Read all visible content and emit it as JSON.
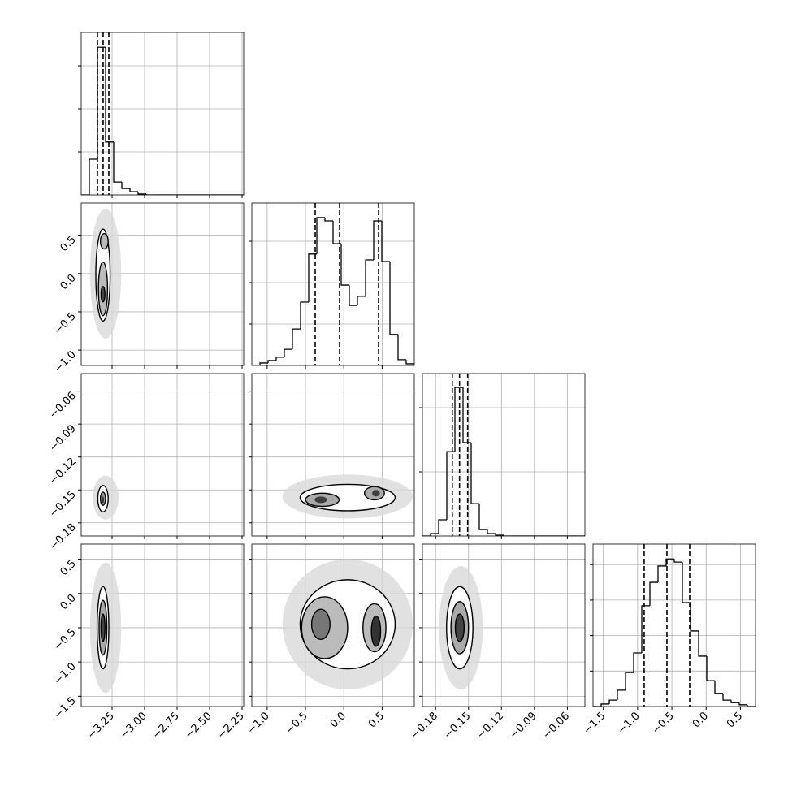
{
  "chart_data": {
    "type": "corner",
    "grid": true,
    "color": "#000000",
    "params": [
      {
        "lim": [
          -3.4875,
          -2.2375
        ],
        "ticks": [
          {
            "value": -3.25,
            "label": "−3.25"
          },
          {
            "value": -3,
            "label": "−3.00"
          },
          {
            "value": -2.75,
            "label": "−2.75"
          },
          {
            "value": -2.5,
            "label": "−2.50"
          },
          {
            "value": -2.25,
            "label": "−2.25"
          }
        ]
      },
      {
        "lim": [
          -1.2,
          0.92
        ],
        "ticks": [
          {
            "value": -1,
            "label": "−1.0"
          },
          {
            "value": -0.5,
            "label": "−0.5"
          },
          {
            "value": 0,
            "label": "0.0"
          },
          {
            "value": 0.5,
            "label": "0.5"
          }
        ]
      },
      {
        "lim": [
          -0.192,
          -0.044
        ],
        "ticks": [
          {
            "value": -0.18,
            "label": "−0.18"
          },
          {
            "value": -0.15,
            "label": "−0.15"
          },
          {
            "value": -0.12,
            "label": "−0.12"
          },
          {
            "value": -0.09,
            "label": "−0.09"
          },
          {
            "value": -0.06,
            "label": "−0.06"
          }
        ]
      },
      {
        "lim": [
          -1.65,
          0.72
        ],
        "ticks": [
          {
            "value": -1.5,
            "label": "−1.5"
          },
          {
            "value": -1,
            "label": "−1.0"
          },
          {
            "value": -0.5,
            "label": "−0.5"
          },
          {
            "value": 0,
            "label": "0.0"
          },
          {
            "value": 0.5,
            "label": "0.5"
          }
        ]
      }
    ],
    "histograms": [
      {
        "bins": [
          -3.4875,
          -3.425,
          -3.3625,
          -3.3,
          -3.2375,
          -3.175,
          -3.1125,
          -3.05,
          -2.9875,
          -2.925,
          -2.8625,
          -2.8,
          -2.7375,
          -2.675,
          -2.6125,
          -2.55,
          -2.4875,
          -2.425,
          -2.3625,
          -2.3,
          -2.2375
        ],
        "counts": [
          0,
          830,
          3430,
          1230,
          300,
          150,
          75,
          20,
          0,
          0,
          0,
          0,
          0,
          0,
          0,
          0,
          0,
          0,
          0,
          0
        ],
        "ylim": [
          0,
          3774
        ],
        "yticks": [
          1000,
          2000,
          3000
        ],
        "quantiles": [
          -3.3625,
          -3.319,
          -3.275
        ]
      },
      {
        "bins": [
          -1.2,
          -1.094,
          -0.988,
          -0.882,
          -0.776,
          -0.67,
          -0.564,
          -0.458,
          -0.352,
          -0.246,
          -0.14,
          -0.034,
          0.072,
          0.178,
          0.284,
          0.39,
          0.496,
          0.602,
          0.708,
          0.814,
          0.92
        ],
        "counts": [
          0,
          60,
          120,
          200,
          390,
          880,
          1530,
          2690,
          3570,
          3490,
          2940,
          1940,
          1450,
          1670,
          2550,
          3490,
          2510,
          750,
          140,
          40
        ],
        "ylim": [
          0,
          3922
        ],
        "yticks": [
          1000,
          2000,
          3000
        ],
        "quantiles": [
          -0.373,
          -0.055,
          0.454
        ]
      },
      {
        "bins": [
          -0.192,
          -0.1846,
          -0.1772,
          -0.1698,
          -0.1624,
          -0.155,
          -0.1476,
          -0.1402,
          -0.1328,
          -0.1254,
          -0.118,
          -0.1106,
          -0.1032,
          -0.0958,
          -0.0884,
          -0.081,
          -0.0736,
          -0.0662,
          -0.0588,
          -0.0514,
          -0.044
        ],
        "counts": [
          0,
          76,
          506,
          2630,
          4630,
          2910,
          1010,
          200,
          76,
          25,
          0,
          0,
          0,
          0,
          0,
          0,
          0,
          0,
          0,
          0
        ],
        "ylim": [
          0,
          5063
        ],
        "yticks": [
          2000,
          4000
        ],
        "quantiles": [
          -0.1648,
          -0.1582,
          -0.1508
        ]
      },
      {
        "bins": [
          -1.65,
          -1.5315,
          -1.413,
          -1.2945,
          -1.176,
          -1.0575,
          -0.939,
          -0.8205,
          -0.702,
          -0.5835,
          -0.465,
          -0.3465,
          -0.228,
          -0.1095,
          0.009,
          0.1275,
          0.246,
          0.3645,
          0.483,
          0.6015,
          0.72
        ],
        "counts": [
          0,
          70,
          180,
          460,
          960,
          1510,
          2840,
          3500,
          3960,
          4160,
          4070,
          2930,
          2130,
          1420,
          730,
          370,
          180,
          110,
          50,
          0
        ],
        "ylim": [
          0,
          4577
        ],
        "yticks": [
          1000,
          2000,
          3000,
          4000
        ],
        "quantiles": [
          -0.904,
          -0.572,
          -0.24
        ]
      }
    ],
    "panels": [
      {
        "contours": [
          {
            "cx": -3.3,
            "cy": 0,
            "rx": 0.12,
            "ry": 0.85,
            "fill": "#d9d9d9",
            "outline": false
          },
          {
            "cx": -3.32,
            "cy": -0.02,
            "rx": 0.055,
            "ry": 0.6,
            "fill": "#ffffff",
            "outline": true
          },
          {
            "cx": -3.32,
            "cy": -0.2,
            "rx": 0.035,
            "ry": 0.35,
            "fill": "#bbbbbb",
            "outline": true
          },
          {
            "cx": -3.31,
            "cy": 0.42,
            "rx": 0.03,
            "ry": 0.1,
            "fill": "#bbbbbb",
            "outline": true
          },
          {
            "cx": -3.32,
            "cy": -0.27,
            "rx": 0.015,
            "ry": 0.1,
            "fill": "#444444",
            "outline": true
          }
        ]
      },
      {
        "contours": [
          {
            "cx": -3.3,
            "cy": -0.157,
            "rx": 0.1,
            "ry": 0.02,
            "fill": "#d9d9d9",
            "outline": false
          },
          {
            "cx": -3.32,
            "cy": -0.158,
            "rx": 0.04,
            "ry": 0.012,
            "fill": "#ffffff",
            "outline": true
          },
          {
            "cx": -3.32,
            "cy": -0.158,
            "rx": 0.02,
            "ry": 0.006,
            "fill": "#999999",
            "outline": true
          },
          {
            "cx": -3.32,
            "cy": -0.159,
            "rx": 0.008,
            "ry": 0.003,
            "fill": "#222222",
            "outline": false
          }
        ]
      },
      {
        "contours": [
          {
            "cx": 0.05,
            "cy": -0.156,
            "rx": 0.85,
            "ry": 0.02,
            "fill": "#d9d9d9",
            "outline": false
          },
          {
            "cx": 0.05,
            "cy": -0.157,
            "rx": 0.62,
            "ry": 0.012,
            "fill": "#ffffff",
            "outline": true
          },
          {
            "cx": -0.28,
            "cy": -0.159,
            "rx": 0.22,
            "ry": 0.006,
            "fill": "#aaaaaa",
            "outline": true
          },
          {
            "cx": 0.4,
            "cy": -0.153,
            "rx": 0.13,
            "ry": 0.006,
            "fill": "#aaaaaa",
            "outline": true
          },
          {
            "cx": -0.3,
            "cy": -0.159,
            "rx": 0.08,
            "ry": 0.003,
            "fill": "#222222",
            "outline": false
          },
          {
            "cx": 0.42,
            "cy": -0.153,
            "rx": 0.05,
            "ry": 0.003,
            "fill": "#222222",
            "outline": false
          }
        ]
      },
      {
        "contours": [
          {
            "cx": -3.3,
            "cy": -0.5,
            "rx": 0.12,
            "ry": 0.95,
            "fill": "#d9d9d9",
            "outline": false
          },
          {
            "cx": -3.32,
            "cy": -0.5,
            "rx": 0.045,
            "ry": 0.6,
            "fill": "#ffffff",
            "outline": true
          },
          {
            "cx": -3.32,
            "cy": -0.5,
            "rx": 0.03,
            "ry": 0.4,
            "fill": "#aaaaaa",
            "outline": true
          },
          {
            "cx": -3.32,
            "cy": -0.5,
            "rx": 0.015,
            "ry": 0.2,
            "fill": "#444444",
            "outline": true
          }
        ]
      },
      {
        "contours": [
          {
            "cx": 0.05,
            "cy": -0.45,
            "rx": 0.85,
            "ry": 0.95,
            "fill": "#d9d9d9",
            "outline": false
          },
          {
            "cx": 0.05,
            "cy": -0.45,
            "rx": 0.62,
            "ry": 0.65,
            "fill": "#ffffff",
            "outline": true
          },
          {
            "cx": -0.25,
            "cy": -0.5,
            "rx": 0.3,
            "ry": 0.45,
            "fill": "#bbbbbb",
            "outline": true
          },
          {
            "cx": 0.4,
            "cy": -0.5,
            "rx": 0.15,
            "ry": 0.35,
            "fill": "#bbbbbb",
            "outline": true
          },
          {
            "cx": -0.3,
            "cy": -0.45,
            "rx": 0.12,
            "ry": 0.22,
            "fill": "#777777",
            "outline": true
          },
          {
            "cx": 0.42,
            "cy": -0.55,
            "rx": 0.06,
            "ry": 0.22,
            "fill": "#333333",
            "outline": true
          }
        ]
      },
      {
        "contours": [
          {
            "cx": -0.157,
            "cy": -0.5,
            "rx": 0.02,
            "ry": 0.9,
            "fill": "#d9d9d9",
            "outline": false
          },
          {
            "cx": -0.158,
            "cy": -0.5,
            "rx": 0.012,
            "ry": 0.6,
            "fill": "#ffffff",
            "outline": true
          },
          {
            "cx": -0.158,
            "cy": -0.5,
            "rx": 0.008,
            "ry": 0.38,
            "fill": "#aaaaaa",
            "outline": true
          },
          {
            "cx": -0.158,
            "cy": -0.5,
            "rx": 0.004,
            "ry": 0.2,
            "fill": "#444444",
            "outline": true
          }
        ]
      }
    ]
  }
}
